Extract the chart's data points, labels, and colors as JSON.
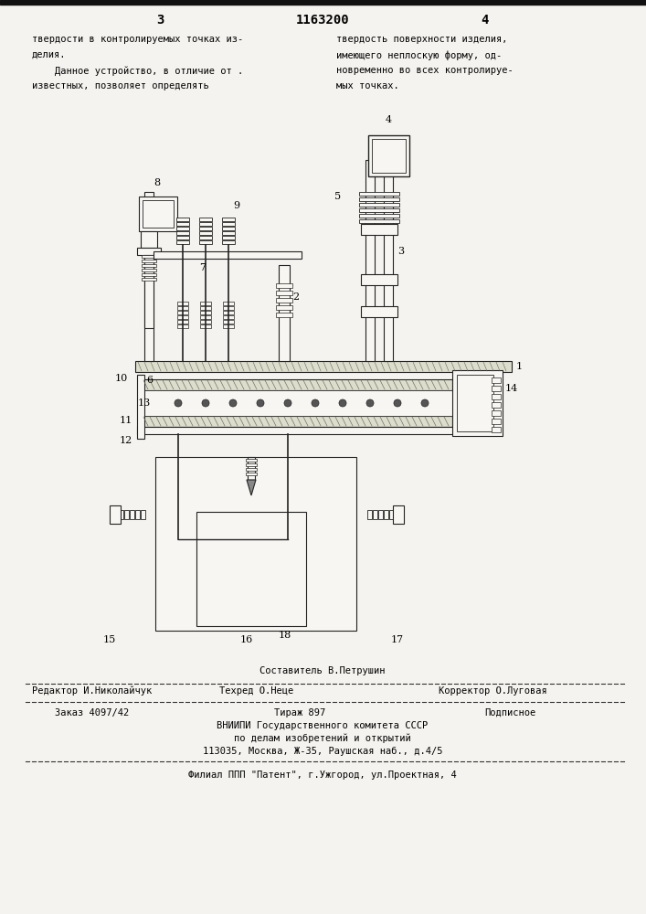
{
  "bg_color": "#f5f3ef",
  "page_num_left": "3",
  "patent_num": "1163200",
  "page_num_right": "4",
  "text_col1_lines": [
    "твердости в контролируемых точках из-",
    "делия.",
    "    Данное устройство, в отличие от .",
    "известных, позволяет определять"
  ],
  "text_col2_lines": [
    "твердость поверхности изделия,",
    "имеющего неплоскую форму, од-",
    "новременно во всех контролируе-",
    "мых точках."
  ],
  "footer_composer": "Составитель В.Петрушин",
  "footer_editor": "Редактор И.Николайчук",
  "footer_techred": "Техред О.Неце",
  "footer_corrector": "Корректор О.Луговая",
  "footer_order": "Заказ 4097/42",
  "footer_print": "Тираж 897",
  "footer_sub": "Подписное",
  "footer_vniipи": "ВНИИПИ Государственного комитета СССР",
  "footer_affairs": "по делам изобретений и открытий",
  "footer_address": "113035, Москва, Ж-35, Раушская наб., д.4/5",
  "footer_filial": "Филиал ППП \"Патент\", г.Ужгород, ул.Проектная, 4",
  "lc": "#222222",
  "lw": 0.8,
  "fill_hatch": "#ddddcc",
  "fill_white": "#f8f6f2"
}
